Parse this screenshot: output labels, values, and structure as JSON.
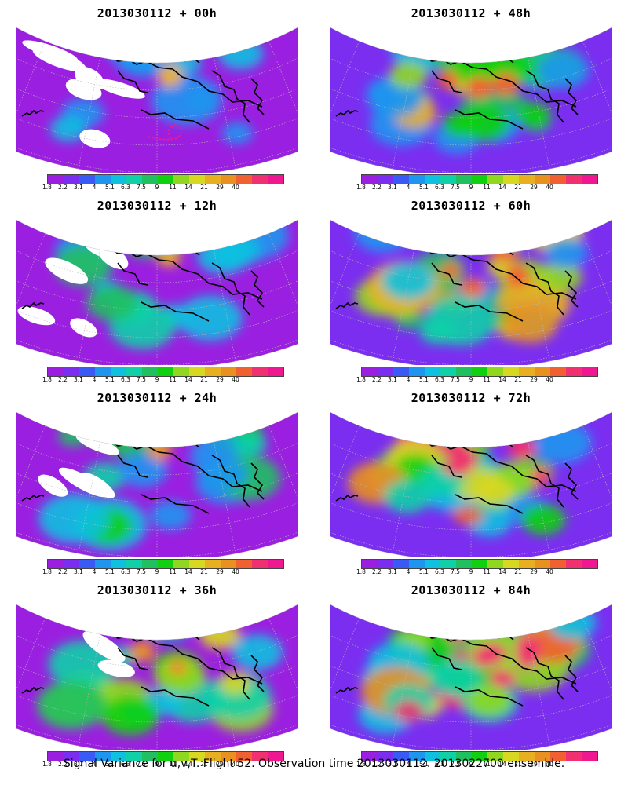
{
  "panels": [
    {
      "title": "2013030112 + 00h",
      "intensity": 0
    },
    {
      "title": "2013030112 + 48h",
      "intensity": 4
    },
    {
      "title": "2013030112 + 12h",
      "intensity": 1
    },
    {
      "title": "2013030112 + 60h",
      "intensity": 5
    },
    {
      "title": "2013030112 + 24h",
      "intensity": 2
    },
    {
      "title": "2013030112 + 72h",
      "intensity": 6
    },
    {
      "title": "2013030112 + 36h",
      "intensity": 3
    },
    {
      "title": "2013030112 + 84h",
      "intensity": 7
    }
  ],
  "colorbar": {
    "colors": [
      "#9b1fe0",
      "#7b2ef0",
      "#3a5af5",
      "#1e96f0",
      "#10c0e0",
      "#10d0a8",
      "#20c060",
      "#10d010",
      "#90d820",
      "#d8d820",
      "#e8b020",
      "#e89020",
      "#f06030",
      "#f03070",
      "#f01890"
    ],
    "labels": [
      "1.8",
      "2.2",
      "3.1",
      "4",
      "5.1",
      "6.3",
      "7.5",
      "9",
      "11",
      "14",
      "21",
      "29",
      "40"
    ]
  },
  "caption": "Signal Variance for u,v,T. Flight 52. Observation time 2013030112. 2013022700 ensemble."
}
